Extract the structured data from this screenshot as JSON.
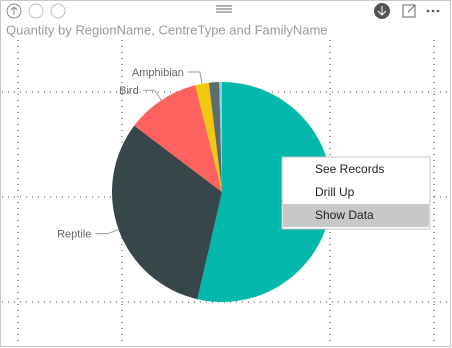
{
  "chart_data": {
    "type": "pie",
    "title": "Quantity by RegionName, CentreType and FamilyName",
    "categories": [
      null,
      "Reptile",
      "Bird",
      "Amphibian",
      null,
      null
    ],
    "values": [
      53.6,
      31.7,
      10.8,
      2,
      1.5,
      0.4
    ],
    "colors": [
      "#01B8AA",
      "#374649",
      "#FD625E",
      "#F2C80F",
      "#5F6B6D",
      "#8AD4EB"
    ]
  },
  "context_menu": {
    "items": [
      "See Records",
      "Drill Up",
      "Show Data"
    ],
    "highlighted": 2
  }
}
